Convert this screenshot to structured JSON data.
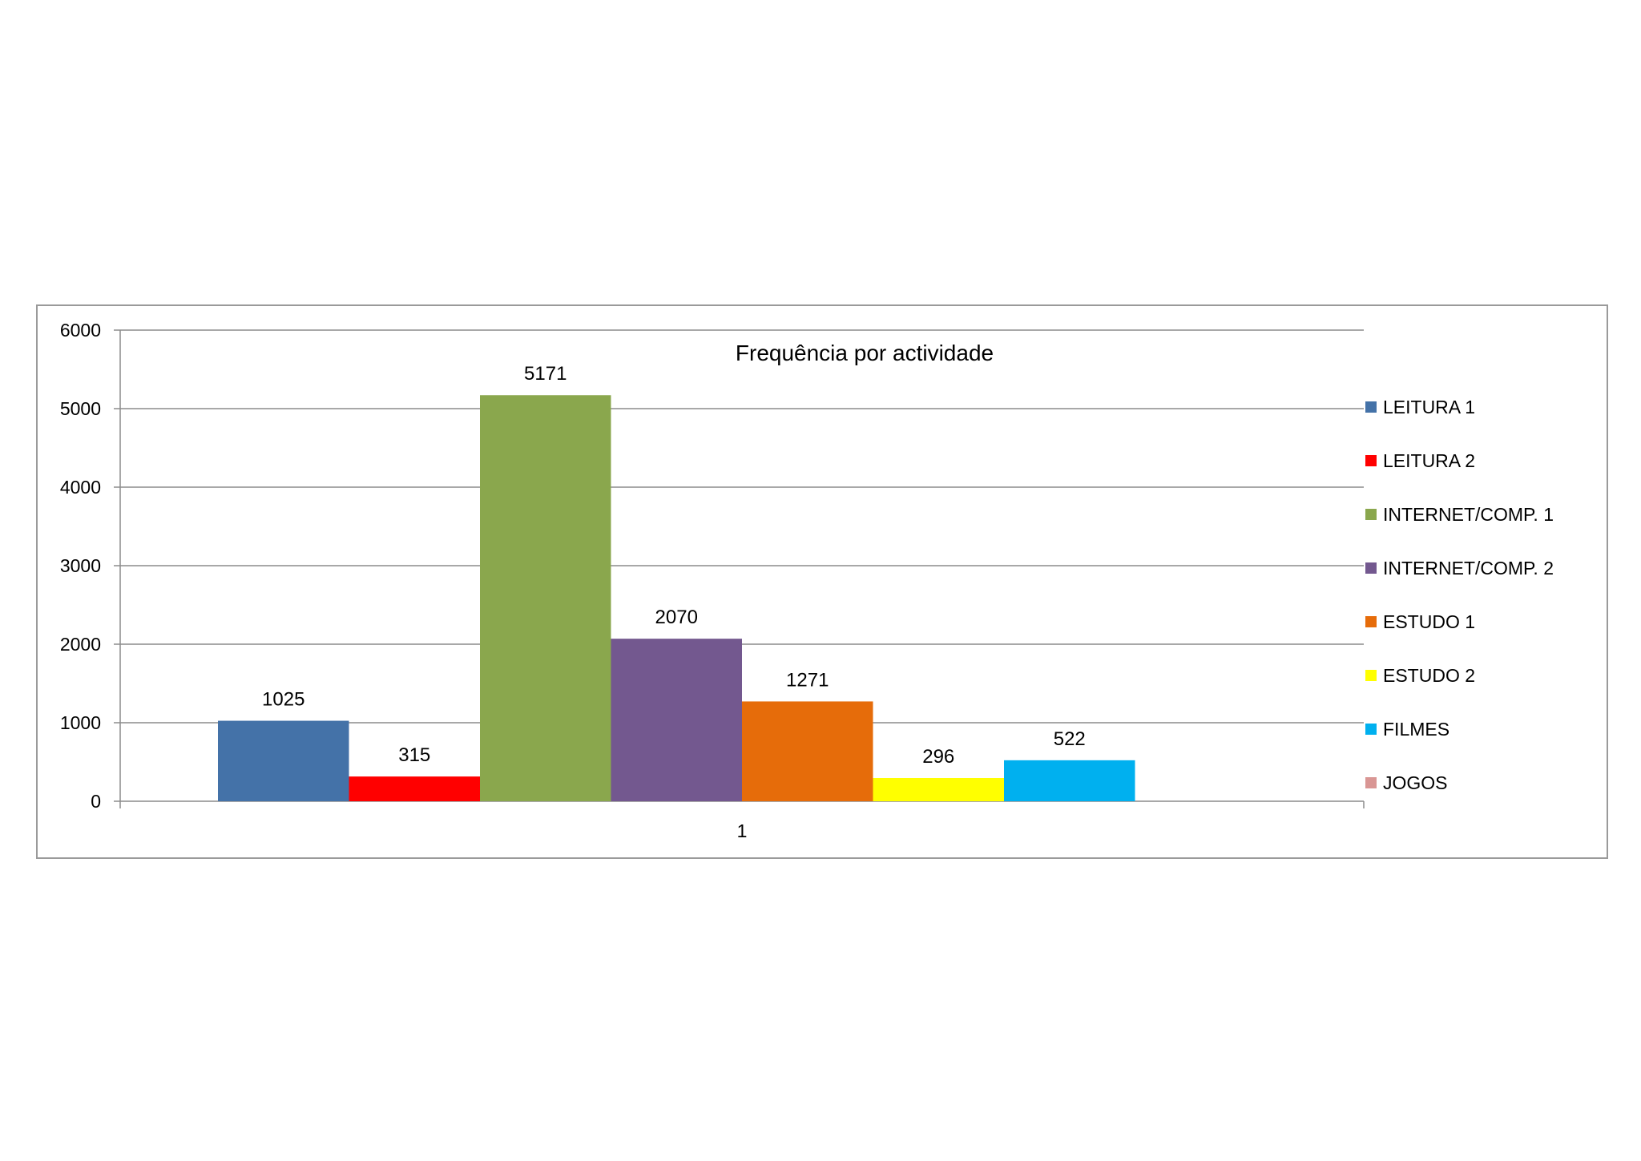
{
  "chart_data": {
    "type": "bar",
    "title": "Frequência por actividade",
    "categories": [
      "1"
    ],
    "series": [
      {
        "name": "LEITURA 1",
        "values": [
          1025
        ],
        "color": "#4472a8"
      },
      {
        "name": "LEITURA 2",
        "values": [
          315
        ],
        "color": "#ff0000"
      },
      {
        "name": "INTERNET/COMP. 1",
        "values": [
          5171
        ],
        "color": "#8aa74d"
      },
      {
        "name": "INTERNET/COMP. 2",
        "values": [
          2070
        ],
        "color": "#73588f"
      },
      {
        "name": "ESTUDO 1",
        "values": [
          1271
        ],
        "color": "#e66c0a"
      },
      {
        "name": "ESTUDO 2",
        "values": [
          296
        ],
        "color": "#ffff00"
      },
      {
        "name": "FILMES",
        "values": [
          522
        ],
        "color": "#00b0ef"
      },
      {
        "name": "JOGOS",
        "values": [
          0
        ],
        "color": "#d99694"
      }
    ],
    "ylim": [
      0,
      6000
    ],
    "yticks": [
      0,
      1000,
      2000,
      3000,
      4000,
      5000,
      6000
    ],
    "grid": true,
    "legend": "right",
    "xlabel": "",
    "ylabel": ""
  }
}
